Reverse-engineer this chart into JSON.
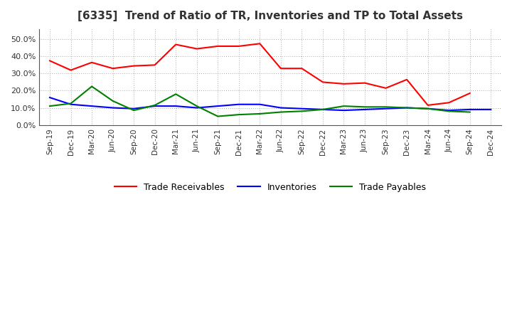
{
  "title": "[6335]  Trend of Ratio of TR, Inventories and TP to Total Assets",
  "x_labels": [
    "Sep-19",
    "Dec-19",
    "Mar-20",
    "Jun-20",
    "Sep-20",
    "Dec-20",
    "Mar-21",
    "Jun-21",
    "Sep-21",
    "Dec-21",
    "Mar-22",
    "Jun-22",
    "Sep-22",
    "Dec-22",
    "Mar-23",
    "Jun-23",
    "Sep-23",
    "Dec-23",
    "Mar-24",
    "Jun-24",
    "Sep-24",
    "Dec-24"
  ],
  "trade_receivables": [
    0.375,
    0.32,
    0.365,
    0.33,
    0.345,
    0.35,
    0.47,
    0.445,
    0.46,
    0.46,
    0.475,
    0.33,
    0.33,
    0.25,
    0.24,
    0.245,
    0.215,
    0.265,
    0.115,
    0.13,
    0.185,
    null
  ],
  "inventories": [
    0.16,
    0.12,
    0.11,
    0.1,
    0.095,
    0.11,
    0.11,
    0.1,
    0.11,
    0.12,
    0.12,
    0.1,
    0.095,
    0.09,
    0.085,
    0.09,
    0.095,
    0.1,
    0.095,
    0.085,
    0.09,
    0.09
  ],
  "trade_payables": [
    0.11,
    0.125,
    0.225,
    0.14,
    0.085,
    0.115,
    0.18,
    0.11,
    0.05,
    0.06,
    0.065,
    0.075,
    0.08,
    0.09,
    0.11,
    0.105,
    0.105,
    0.1,
    0.095,
    0.08,
    0.075,
    null
  ],
  "ylim": [
    0.0,
    0.56
  ],
  "yticks": [
    0.0,
    0.1,
    0.2,
    0.3,
    0.4,
    0.5
  ],
  "line_color_tr": "#ff0000",
  "line_color_inv": "#0000ff",
  "line_color_tp": "#008000",
  "background_color": "#ffffff",
  "grid_color": "#aaaaaa",
  "title_fontsize": 11,
  "title_color": "#333333",
  "legend_labels": [
    "Trade Receivables",
    "Inventories",
    "Trade Payables"
  ]
}
